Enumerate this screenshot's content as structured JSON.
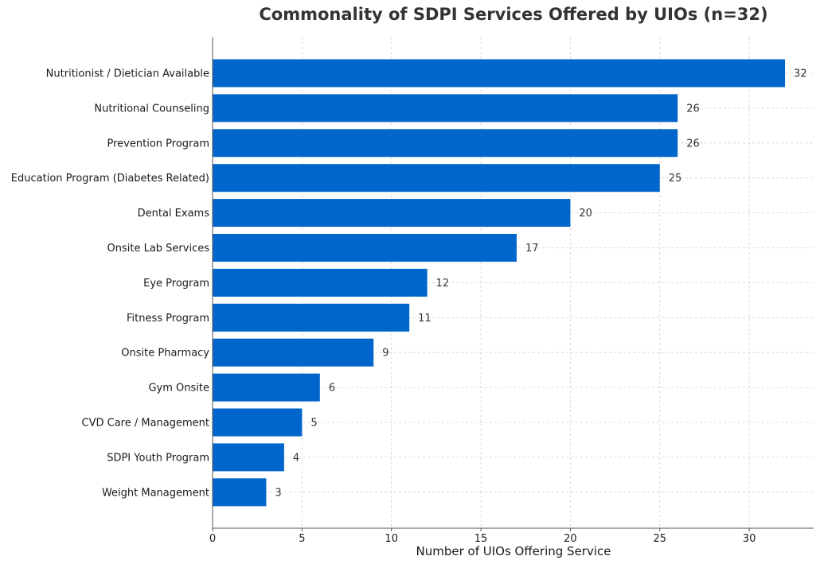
{
  "chart_data": {
    "type": "bar",
    "orientation": "horizontal",
    "title": "Commonality of SDPI Services Offered by UIOs (n=32)",
    "xlabel": "Number of UIOs Offering Service",
    "ylabel": "",
    "categories": [
      "Nutritionist / Dietician Available",
      "Nutritional Counseling",
      "Prevention Program",
      "Education Program (Diabetes Related)",
      "Dental Exams",
      "Onsite Lab Services",
      "Eye Program",
      "Fitness Program",
      "Onsite Pharmacy",
      "Gym Onsite",
      "CVD Care / Management",
      "SDPI Youth Program",
      "Weight Management"
    ],
    "values": [
      32,
      26,
      26,
      25,
      20,
      17,
      12,
      11,
      9,
      6,
      5,
      4,
      3
    ],
    "xlim": [
      0,
      33.6
    ],
    "xticks": [
      0,
      5,
      10,
      15,
      20,
      25,
      30
    ],
    "grid": true,
    "bar_color": "#0066cc",
    "data_labels": true
  }
}
